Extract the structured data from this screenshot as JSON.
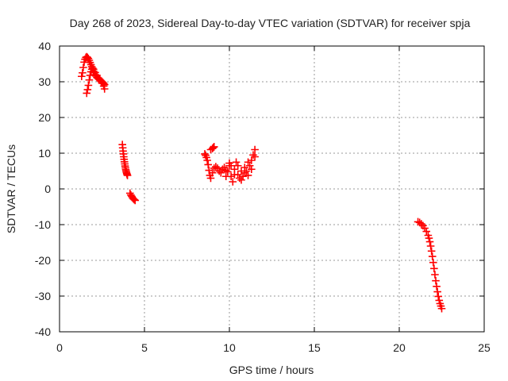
{
  "chart_data": {
    "type": "scatter",
    "title": "Day 268 of 2023, Sidereal Day-to-day VTEC variation (SDTVAR) for receiver spja",
    "xlabel": "GPS time / hours",
    "ylabel": "SDTVAR / TECUs",
    "xlim": [
      0,
      25
    ],
    "ylim": [
      -40,
      40
    ],
    "x_ticks": [
      0,
      5,
      10,
      15,
      20,
      25
    ],
    "y_ticks": [
      -40,
      -30,
      -20,
      -10,
      0,
      10,
      20,
      30,
      40
    ],
    "grid": true,
    "marker": "plus",
    "series": [
      {
        "name": "SDTVAR",
        "color": "#ff0000",
        "segments": [
          {
            "x": [
              1.3,
              1.35,
              1.4,
              1.45,
              1.5,
              1.55,
              1.6,
              1.65,
              1.7,
              1.75,
              1.8,
              1.85,
              1.9,
              1.95,
              2.0,
              2.05,
              2.1,
              2.15,
              2.2,
              2.25,
              2.3,
              2.35,
              2.4,
              2.45,
              2.5,
              2.55,
              2.6,
              2.65
            ],
            "y": [
              31.5,
              32.5,
              34.0,
              35.5,
              36.3,
              36.8,
              37.0,
              36.8,
              36.5,
              36.0,
              35.4,
              34.8,
              34.2,
              33.5,
              33.0,
              32.5,
              32.0,
              31.6,
              31.2,
              31.0,
              30.8,
              30.6,
              30.4,
              30.2,
              30.0,
              29.8,
              29.5,
              29.2
            ]
          },
          {
            "x": [
              1.6,
              1.65,
              1.7,
              1.75,
              1.8,
              1.85,
              1.9,
              1.95,
              2.0,
              2.1,
              2.2,
              2.3,
              2.4,
              2.5,
              2.6,
              2.65
            ],
            "y": [
              26.8,
              27.8,
              29.0,
              30.5,
              31.8,
              32.8,
              33.5,
              33.8,
              33.5,
              32.6,
              31.8,
              31.0,
              30.4,
              29.6,
              28.8,
              28.0
            ]
          },
          {
            "x": [
              3.7,
              3.72,
              3.74,
              3.76,
              3.78,
              3.8,
              3.82,
              3.84,
              3.86,
              3.88,
              3.9,
              3.92,
              3.94,
              3.96,
              3.98,
              4.0
            ],
            "y": [
              12.4,
              11.5,
              10.6,
              9.8,
              9.0,
              8.3,
              7.6,
              7.0,
              6.4,
              5.9,
              5.4,
              5.0,
              4.6,
              4.3,
              4.0,
              3.8
            ]
          },
          {
            "x": [
              4.15,
              4.2,
              4.25,
              4.3,
              4.35,
              4.4,
              4.45
            ],
            "y": [
              -1.2,
              -1.7,
              -2.1,
              -2.5,
              -2.8,
              -3.0,
              -3.2
            ]
          },
          {
            "x": [
              8.55,
              8.6,
              8.65,
              8.7,
              8.75,
              8.8,
              8.85,
              8.9,
              9.0,
              9.1,
              9.2,
              9.3,
              9.4,
              9.5,
              9.6,
              9.7,
              9.8,
              9.9,
              10.0,
              10.1,
              10.2,
              10.3,
              10.4,
              10.5,
              10.6,
              10.7,
              10.8,
              10.9,
              11.0,
              11.1,
              11.2,
              11.3,
              11.4,
              11.5
            ],
            "y": [
              9.8,
              9.4,
              8.8,
              8.0,
              6.8,
              5.2,
              3.8,
              3.0,
              4.5,
              5.8,
              6.2,
              5.8,
              5.0,
              4.5,
              5.5,
              6.0,
              5.2,
              4.8,
              6.5,
              3.5,
              2.0,
              5.5,
              7.5,
              4.0,
              3.0,
              5.0,
              3.5,
              6.0,
              5.0,
              7.5,
              6.5,
              8.0,
              9.5,
              11.0
            ]
          },
          {
            "x": [
              8.9,
              9.0,
              9.05,
              9.1,
              9.5,
              9.8,
              10.0,
              10.1,
              10.3,
              10.5,
              10.7,
              10.9,
              11.1,
              11.3,
              11.5
            ],
            "y": [
              11.0,
              11.3,
              11.6,
              11.8,
              5.0,
              3.5,
              7.2,
              6.5,
              4.0,
              6.5,
              2.5,
              4.5,
              3.8,
              5.5,
              9.0
            ]
          },
          {
            "x": [
              21.1,
              21.2,
              21.3,
              21.4,
              21.5,
              21.6,
              21.7,
              21.75,
              21.8,
              21.85,
              21.9,
              21.95,
              22.0,
              22.05,
              22.1,
              22.15,
              22.2,
              22.25,
              22.3,
              22.35,
              22.4,
              22.45,
              22.5
            ],
            "y": [
              -9.2,
              -9.4,
              -9.8,
              -10.3,
              -11.0,
              -11.9,
              -13.0,
              -13.8,
              -14.8,
              -16.0,
              -17.4,
              -18.9,
              -20.6,
              -22.3,
              -24.0,
              -25.7,
              -27.3,
              -28.8,
              -30.1,
              -31.2,
              -32.1,
              -32.8,
              -33.5
            ]
          }
        ]
      }
    ]
  }
}
